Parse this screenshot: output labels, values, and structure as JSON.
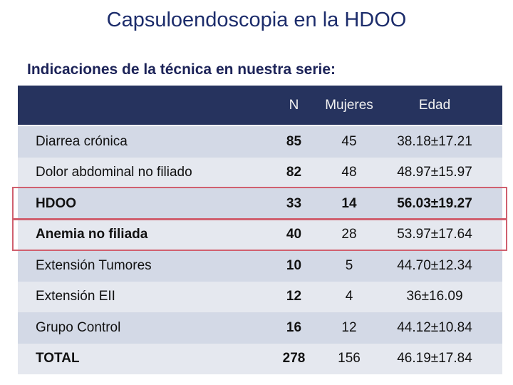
{
  "header": {
    "title": "Capsuloendoscopia en la HDOO",
    "subtitle": "Indicaciones de la técnica en nuestra serie:"
  },
  "table": {
    "columns": [
      "",
      "N",
      "Mujeres",
      "Edad"
    ],
    "rows": [
      [
        "Diarrea crónica",
        "85",
        "45",
        "38.18±17.21"
      ],
      [
        "Dolor abdominal no filiado",
        "82",
        "48",
        "48.97±15.97"
      ],
      [
        "HDOO",
        "33",
        "14",
        "56.03±19.27"
      ],
      [
        "Anemia no filiada",
        "40",
        "28",
        "53.97±17.64"
      ],
      [
        "Extensión Tumores",
        "10",
        "5",
        "44.70±12.34"
      ],
      [
        "Extensión EII",
        "12",
        "4",
        "36±16.09"
      ],
      [
        "Grupo Control",
        "16",
        "12",
        "44.12±10.84"
      ],
      [
        "TOTAL",
        "278",
        "156",
        "46.19±17.84"
      ]
    ]
  }
}
